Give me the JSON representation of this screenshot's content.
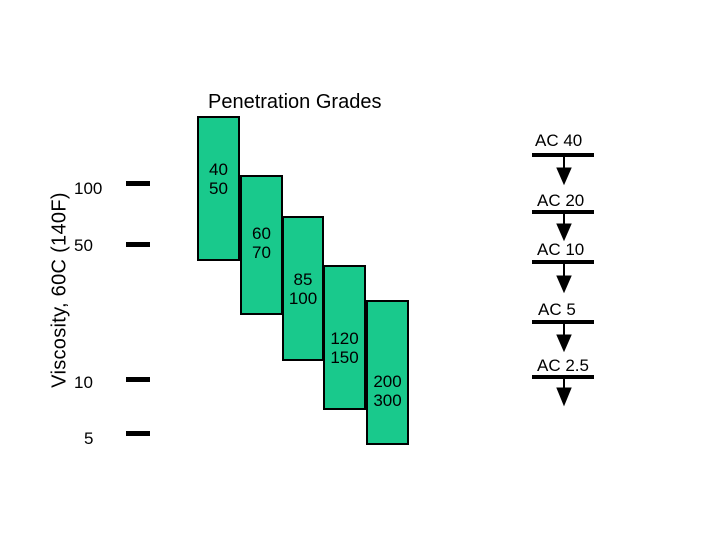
{
  "title": "Penetration Grades",
  "y_axis_label": "Viscosity, 60C (140F)",
  "viscosity_ticks": [
    "100",
    "50",
    "10",
    "5"
  ],
  "penetration_grades": [
    {
      "low": "40",
      "high": "50"
    },
    {
      "low": "60",
      "high": "70"
    },
    {
      "low": "85",
      "high": "100"
    },
    {
      "low": "120",
      "high": "150"
    },
    {
      "low": "200",
      "high": "300"
    }
  ],
  "ac_grades": [
    "AC 40",
    "AC 20",
    "AC 10",
    "AC 5",
    "AC 2.5"
  ],
  "colors": {
    "grade_fill": "#19c98c",
    "outline": "#000000",
    "background": "#ffffff"
  }
}
